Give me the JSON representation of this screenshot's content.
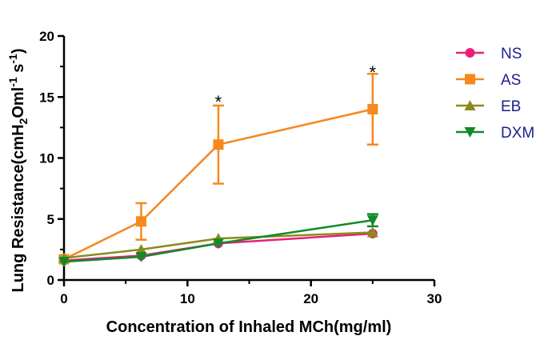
{
  "chart_data": {
    "type": "line",
    "xlabel": "Concentration of Inhaled MCh(mg/ml)",
    "ylabel": {
      "main": "Lung Resistance(cmH",
      "sub1": "2",
      "mid1": "Oml",
      "sup1": "-1",
      "mid2": " s",
      "sup2": "-1",
      "end": ")"
    },
    "xlim": [
      0,
      30
    ],
    "ylim": [
      0,
      20
    ],
    "xticks": [
      0,
      10,
      20,
      30
    ],
    "yticks": [
      0,
      5,
      10,
      15,
      20
    ],
    "legend_position": "right",
    "series": [
      {
        "name": "NS",
        "color": "#e8207a",
        "marker": "circle",
        "x": [
          0,
          6.25,
          12.5,
          25
        ],
        "y": [
          1.6,
          2.0,
          3.0,
          3.8
        ],
        "err": [
          0,
          0,
          0,
          0
        ]
      },
      {
        "name": "AS",
        "color": "#f5881e",
        "marker": "square",
        "x": [
          0,
          6.25,
          12.5,
          25
        ],
        "y": [
          1.7,
          4.8,
          11.1,
          14.0
        ],
        "err": [
          0,
          1.5,
          3.2,
          2.9
        ]
      },
      {
        "name": "EB",
        "color": "#8b8b1a",
        "marker": "triangle-up",
        "x": [
          0,
          6.25,
          12.5,
          25
        ],
        "y": [
          1.8,
          2.5,
          3.4,
          3.9
        ],
        "err": [
          0,
          0,
          0,
          0
        ]
      },
      {
        "name": "DXM",
        "color": "#108a28",
        "marker": "triangle-down",
        "x": [
          0,
          6.25,
          12.5,
          25
        ],
        "y": [
          1.5,
          1.9,
          3.0,
          4.9
        ],
        "err": [
          0,
          0,
          0,
          0.5
        ]
      }
    ],
    "annotations": [
      {
        "text": "*",
        "x": 12.5,
        "y": 14.9
      },
      {
        "text": "*",
        "x": 25,
        "y": 17.3
      }
    ]
  }
}
